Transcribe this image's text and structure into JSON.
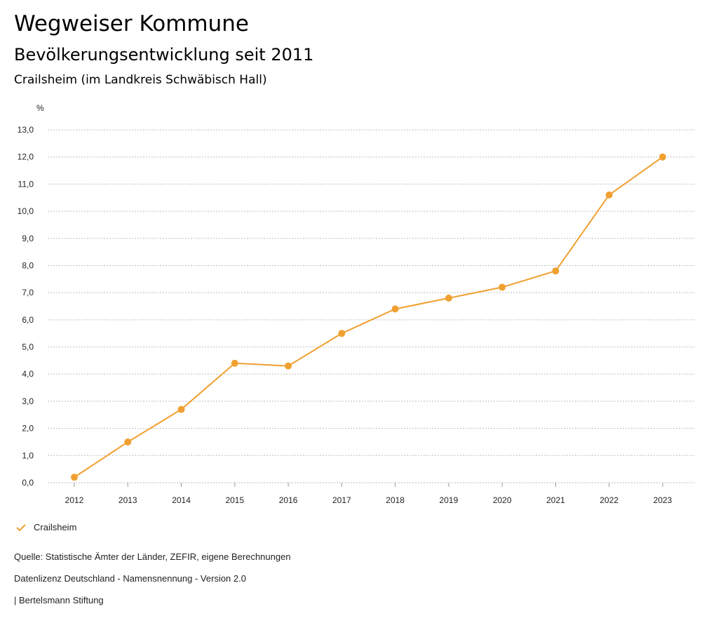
{
  "header": {
    "title": "Wegweiser Kommune",
    "subtitle": "Bevölkerungsentwicklung seit 2011",
    "region": "Crailsheim (im Landkreis Schwäbisch Hall)"
  },
  "chart_data": {
    "type": "line",
    "title": "Bevölkerungsentwicklung seit 2011",
    "unit_label": "%",
    "xlabel": "",
    "ylabel": "%",
    "x": [
      "2012",
      "2013",
      "2014",
      "2015",
      "2016",
      "2017",
      "2018",
      "2019",
      "2020",
      "2021",
      "2022",
      "2023"
    ],
    "series": [
      {
        "name": "Crailsheim",
        "color": "#F0A030",
        "values": [
          0.2,
          1.5,
          2.7,
          4.4,
          4.3,
          5.5,
          6.4,
          6.8,
          7.2,
          7.8,
          10.6,
          12.0
        ]
      }
    ],
    "ylim": [
      0,
      13
    ],
    "yticks": [
      "0,0",
      "1,0",
      "2,0",
      "3,0",
      "4,0",
      "5,0",
      "6,0",
      "7,0",
      "8,0",
      "9,0",
      "10,0",
      "11,0",
      "12,0",
      "13,0"
    ],
    "grid": true,
    "legend_position": "bottom-left"
  },
  "legend": {
    "label": "Crailsheim",
    "color": "#F0A030"
  },
  "footer": {
    "source": "Quelle: Statistische Ämter der Länder, ZEFIR, eigene Berechnungen",
    "license": "Datenlizenz Deutschland - Namensnennung - Version 2.0",
    "publisher": "| Bertelsmann Stiftung"
  }
}
